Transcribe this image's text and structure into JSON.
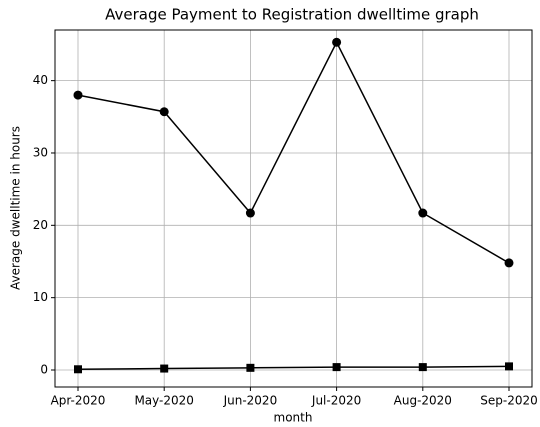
{
  "chart_data": {
    "type": "line",
    "title": "Average Payment to Registration dwelltime graph",
    "x_label": "month",
    "y_label": "Average dwelltime in hours",
    "categories": [
      "Apr-2020",
      "May-2020",
      "Jun-2020",
      "Jul-2020",
      "Aug-2020",
      "Sep-2020"
    ],
    "series": [
      {
        "color": "#000000",
        "marker": "circle",
        "values": [
          38,
          35.7,
          21.7,
          45.3,
          21.7,
          14.8
        ]
      },
      {
        "color": "#000000",
        "marker": "square",
        "values": [
          0.1,
          0.2,
          0.3,
          0.4,
          0.4,
          0.5
        ]
      }
    ],
    "ylim": [
      -2.35,
      47
    ],
    "yticks": [
      0,
      10,
      20,
      30,
      40
    ],
    "grid": true
  }
}
